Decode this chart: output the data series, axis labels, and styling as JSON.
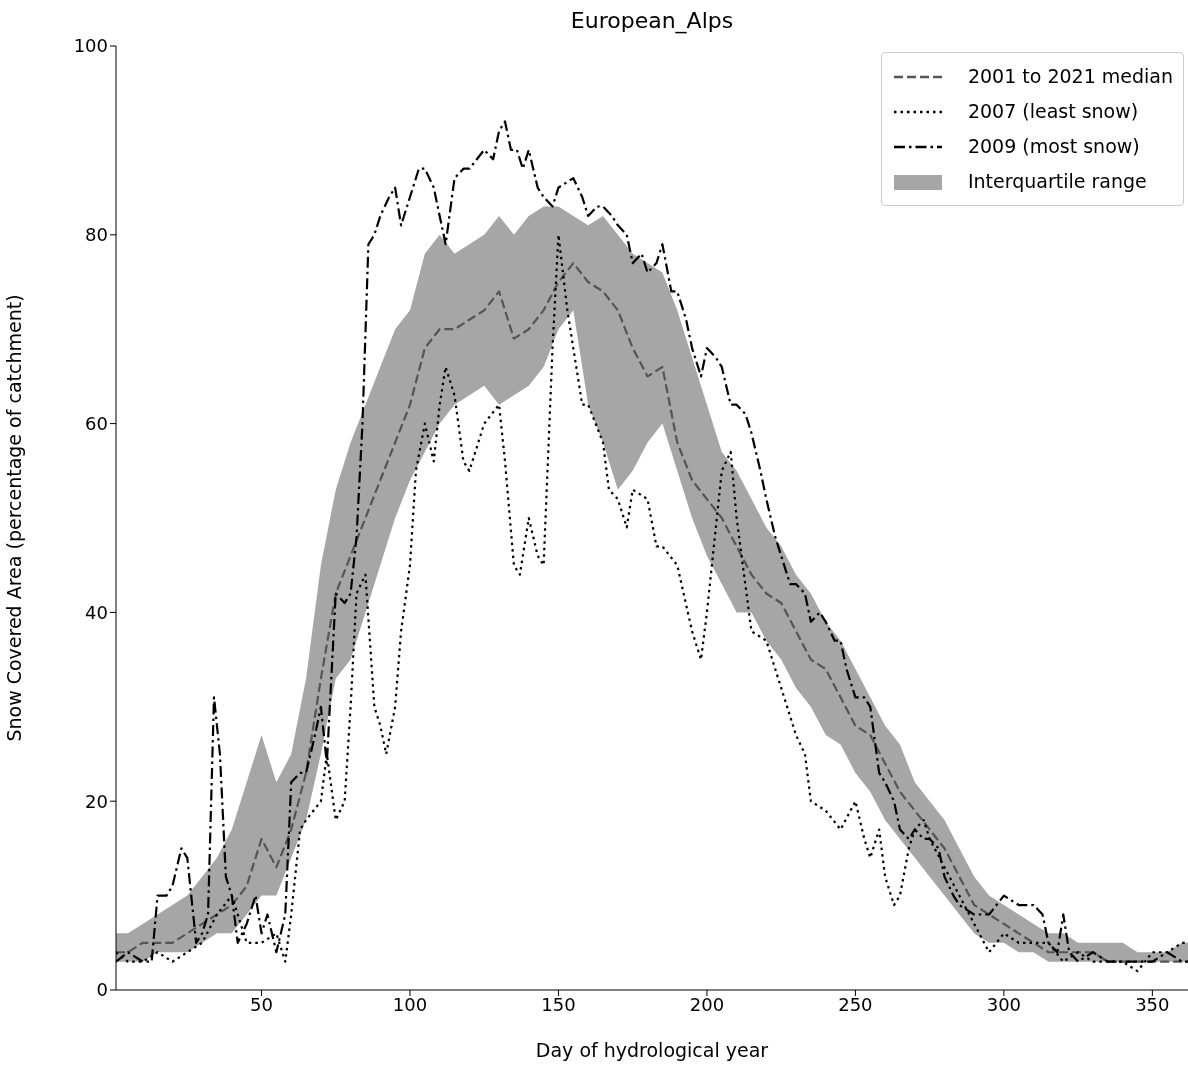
{
  "chart_data": {
    "type": "line",
    "title": "European_Alps",
    "xlabel": "Day of hydrological year",
    "ylabel": "Snow Covered Area (percentage of catchment)",
    "xlim": [
      1,
      362
    ],
    "xticks": [
      50,
      100,
      150,
      200,
      250,
      300,
      350
    ],
    "ylim": [
      0,
      100
    ],
    "yticks": [
      0,
      20,
      40,
      60,
      80,
      100
    ],
    "grid": false,
    "legend": "top right",
    "series": [
      {
        "name": "2001 to 2021 median",
        "line_style": "dashed",
        "color": "#555555",
        "x": [
          1,
          5,
          10,
          15,
          20,
          25,
          30,
          35,
          40,
          45,
          50,
          55,
          60,
          65,
          70,
          75,
          80,
          85,
          90,
          95,
          100,
          105,
          110,
          115,
          120,
          125,
          130,
          135,
          140,
          145,
          150,
          155,
          160,
          165,
          170,
          175,
          180,
          185,
          190,
          195,
          200,
          205,
          210,
          215,
          220,
          225,
          230,
          235,
          240,
          245,
          250,
          255,
          260,
          265,
          270,
          275,
          280,
          285,
          290,
          295,
          300,
          305,
          310,
          315,
          320,
          325,
          330,
          335,
          340,
          345,
          350,
          355,
          360,
          362
        ],
        "values": [
          4,
          4,
          5,
          5,
          5,
          6,
          7,
          8,
          9,
          11,
          16,
          13,
          17,
          23,
          33,
          42,
          46,
          50,
          54,
          58,
          62,
          68,
          70,
          70,
          71,
          72,
          74,
          69,
          70,
          72,
          75,
          77,
          75,
          74,
          72,
          68,
          65,
          66,
          58,
          54,
          52,
          50,
          47,
          44,
          42,
          41,
          38,
          35,
          34,
          31,
          28,
          27,
          24,
          21,
          19,
          17,
          15,
          12,
          9,
          8,
          7,
          6,
          5,
          4,
          4,
          4,
          4,
          3,
          3,
          3,
          3,
          3,
          3,
          3
        ]
      },
      {
        "name": "2007 (least snow)",
        "line_style": "dotted",
        "color": "#000000",
        "x": [
          1,
          5,
          10,
          15,
          20,
          25,
          30,
          35,
          40,
          45,
          50,
          55,
          58,
          60,
          63,
          65,
          70,
          72,
          75,
          78,
          80,
          82,
          85,
          88,
          90,
          92,
          95,
          97,
          100,
          102,
          105,
          108,
          110,
          112,
          115,
          118,
          120,
          125,
          130,
          132,
          135,
          137,
          140,
          143,
          145,
          148,
          150,
          153,
          155,
          158,
          160,
          165,
          167,
          170,
          173,
          175,
          180,
          183,
          185,
          190,
          195,
          198,
          200,
          205,
          208,
          210,
          215,
          220,
          225,
          230,
          233,
          235,
          240,
          245,
          250,
          253,
          255,
          258,
          260,
          263,
          265,
          268,
          270,
          273,
          275,
          280,
          285,
          290,
          295,
          300,
          305,
          310,
          315,
          320,
          325,
          330,
          335,
          340,
          345,
          350,
          355,
          360,
          362
        ],
        "values": [
          4,
          3,
          3,
          4,
          3,
          4,
          5,
          8,
          10,
          5,
          5,
          6,
          3,
          8,
          17,
          18,
          20,
          25,
          18,
          20,
          30,
          42,
          44,
          30,
          28,
          25,
          30,
          38,
          45,
          55,
          60,
          56,
          62,
          66,
          63,
          56,
          55,
          60,
          62,
          56,
          45,
          44,
          50,
          46,
          45,
          68,
          80,
          72,
          68,
          62,
          62,
          58,
          53,
          52,
          49,
          53,
          52,
          47,
          47,
          45,
          38,
          35,
          40,
          55,
          57,
          50,
          38,
          37,
          32,
          27,
          25,
          20,
          19,
          17,
          20,
          16,
          14,
          17,
          12,
          9,
          10,
          15,
          17,
          18,
          16,
          13,
          10,
          7,
          4,
          6,
          5,
          5,
          5,
          3,
          4,
          3,
          3,
          3,
          2,
          4,
          4,
          5,
          5
        ]
      },
      {
        "name": "2009 (most snow)",
        "line_style": "dashdot",
        "color": "#000000",
        "x": [
          1,
          5,
          10,
          13,
          15,
          18,
          20,
          23,
          25,
          28,
          30,
          32,
          34,
          36,
          38,
          40,
          42,
          45,
          48,
          50,
          52,
          55,
          58,
          60,
          63,
          65,
          68,
          70,
          72,
          75,
          78,
          80,
          82,
          84,
          86,
          88,
          90,
          93,
          95,
          97,
          100,
          103,
          105,
          108,
          110,
          112,
          115,
          118,
          120,
          125,
          128,
          130,
          132,
          134,
          136,
          138,
          140,
          143,
          145,
          148,
          150,
          155,
          158,
          160,
          163,
          165,
          168,
          170,
          173,
          175,
          178,
          180,
          183,
          185,
          188,
          190,
          193,
          195,
          198,
          200,
          203,
          205,
          208,
          210,
          213,
          215,
          218,
          220,
          223,
          225,
          228,
          230,
          233,
          235,
          238,
          240,
          243,
          245,
          247,
          250,
          253,
          255,
          258,
          260,
          263,
          265,
          268,
          270,
          273,
          275,
          278,
          280,
          283,
          285,
          290,
          295,
          300,
          305,
          310,
          313,
          315,
          318,
          320,
          322,
          325,
          330,
          335,
          340,
          345,
          350,
          355,
          360,
          362
        ],
        "values": [
          3,
          4,
          3,
          3,
          10,
          10,
          11,
          15,
          14,
          5,
          6,
          8,
          31,
          25,
          12,
          10,
          5,
          7,
          10,
          6,
          8,
          4,
          8,
          22,
          23,
          23,
          27,
          30,
          24,
          42,
          41,
          42,
          48,
          60,
          79,
          80,
          82,
          84,
          85,
          81,
          84,
          87,
          87,
          85,
          82,
          79,
          86,
          87,
          87,
          89,
          88,
          91,
          92,
          89,
          89,
          87,
          89,
          85,
          84,
          83,
          85,
          86,
          84,
          82,
          83,
          83,
          82,
          81,
          80,
          77,
          78,
          76,
          77,
          79,
          74,
          74,
          71,
          68,
          65,
          68,
          67,
          66,
          62,
          62,
          61,
          59,
          55,
          52,
          48,
          46,
          43,
          43,
          42,
          39,
          40,
          39,
          37,
          37,
          34,
          31,
          31,
          30,
          23,
          22,
          20,
          17,
          16,
          17,
          16,
          16,
          15,
          12,
          10,
          9,
          8,
          8,
          10,
          9,
          9,
          8,
          5,
          4,
          8,
          4,
          3,
          4,
          3,
          3,
          3,
          3,
          4,
          3,
          3
        ]
      },
      {
        "name": "Interquartile range",
        "type": "area",
        "color": "#a6a6a6",
        "x": [
          1,
          5,
          10,
          15,
          20,
          25,
          30,
          35,
          40,
          45,
          50,
          55,
          60,
          65,
          70,
          75,
          80,
          85,
          90,
          95,
          100,
          105,
          110,
          115,
          120,
          125,
          130,
          135,
          140,
          145,
          150,
          155,
          160,
          165,
          170,
          175,
          180,
          185,
          190,
          195,
          200,
          205,
          210,
          215,
          220,
          225,
          230,
          235,
          240,
          245,
          250,
          255,
          260,
          265,
          270,
          275,
          280,
          285,
          290,
          295,
          300,
          305,
          310,
          315,
          320,
          325,
          330,
          335,
          340,
          345,
          350,
          355,
          360,
          362
        ],
        "values": [
          null,
          null,
          null,
          null,
          null,
          null,
          null,
          null,
          null,
          null,
          null,
          null,
          null,
          null,
          null,
          null,
          null,
          null,
          null,
          null,
          null,
          null,
          null,
          null,
          null,
          null,
          null,
          null,
          null,
          null,
          null,
          null,
          null,
          null,
          null,
          null,
          null,
          null,
          null,
          null,
          null,
          null,
          null,
          null,
          null,
          null,
          null,
          null,
          null,
          null,
          null,
          null,
          null,
          null,
          null,
          null,
          null,
          null,
          null,
          null,
          null,
          null,
          null,
          null,
          null,
          null,
          null,
          null,
          null,
          null,
          null,
          null,
          null,
          null
        ],
        "lower": [
          3,
          3,
          3,
          4,
          4,
          4,
          5,
          6,
          6,
          8,
          10,
          10,
          14,
          18,
          25,
          33,
          35,
          40,
          45,
          50,
          54,
          57,
          60,
          62,
          63,
          64,
          62,
          63,
          64,
          66,
          70,
          72,
          62,
          58,
          53,
          55,
          58,
          60,
          55,
          50,
          46,
          43,
          40,
          40,
          37,
          35,
          32,
          30,
          27,
          26,
          23,
          21,
          18,
          16,
          14,
          12,
          10,
          8,
          6,
          5,
          5,
          4,
          4,
          3,
          3,
          3,
          3,
          3,
          3,
          3,
          3,
          3,
          3,
          3
        ],
        "upper": [
          6,
          6,
          7,
          8,
          9,
          10,
          12,
          14,
          17,
          22,
          27,
          22,
          25,
          33,
          45,
          53,
          58,
          62,
          66,
          70,
          72,
          78,
          80,
          78,
          79,
          80,
          82,
          80,
          82,
          83,
          83,
          82,
          81,
          82,
          80,
          78,
          77,
          76,
          72,
          67,
          62,
          57,
          55,
          52,
          49,
          47,
          44,
          42,
          39,
          37,
          34,
          31,
          28,
          26,
          22,
          20,
          18,
          15,
          12,
          10,
          9,
          8,
          7,
          6,
          6,
          5,
          5,
          5,
          5,
          4,
          4,
          4,
          5,
          5
        ]
      }
    ]
  }
}
